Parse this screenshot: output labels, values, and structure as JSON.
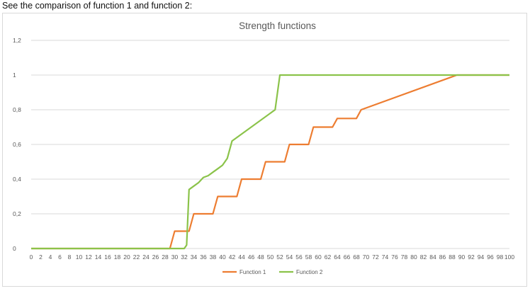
{
  "intro_text": "See the comparison of function 1 and function 2:",
  "chart_data": {
    "type": "line",
    "title": "Strength functions",
    "xlabel": "",
    "ylabel": "",
    "x": [
      0,
      2,
      4,
      6,
      8,
      10,
      12,
      14,
      16,
      18,
      20,
      22,
      24,
      26,
      28,
      30,
      32,
      34,
      36,
      38,
      40,
      42,
      44,
      46,
      48,
      50,
      52,
      54,
      56,
      58,
      60,
      62,
      64,
      66,
      68,
      70,
      72,
      74,
      76,
      78,
      80,
      82,
      84,
      86,
      88,
      90,
      92,
      94,
      96,
      98,
      100
    ],
    "x_tick_labels": [
      "0",
      "2",
      "4",
      "6",
      "8",
      "10",
      "12",
      "14",
      "16",
      "18",
      "20",
      "22",
      "24",
      "26",
      "28",
      "30",
      "32",
      "34",
      "36",
      "38",
      "40",
      "42",
      "44",
      "46",
      "48",
      "50",
      "52",
      "54",
      "56",
      "58",
      "60",
      "62",
      "64",
      "66",
      "68",
      "70",
      "72",
      "74",
      "76",
      "78",
      "80",
      "82",
      "84",
      "86",
      "88",
      "90",
      "92",
      "94",
      "96",
      "98",
      "100"
    ],
    "xlim": [
      0,
      100
    ],
    "ylim": [
      0,
      1.2
    ],
    "y_ticks": [
      0,
      0.2,
      0.4,
      0.6,
      0.8,
      1,
      1.2
    ],
    "y_tick_labels": [
      "0",
      "0,2",
      "0,4",
      "0,6",
      "0,8",
      "1",
      "1,2"
    ],
    "grid": "horizontal",
    "legend_position": "bottom",
    "series": [
      {
        "name": "Function 1",
        "color": "#ED7D31",
        "points": [
          [
            0,
            0
          ],
          [
            29,
            0
          ],
          [
            30,
            0.1
          ],
          [
            33,
            0.1
          ],
          [
            34,
            0.2
          ],
          [
            38,
            0.2
          ],
          [
            39,
            0.3
          ],
          [
            43,
            0.3
          ],
          [
            44,
            0.4
          ],
          [
            48,
            0.4
          ],
          [
            49,
            0.5
          ],
          [
            53,
            0.5
          ],
          [
            54,
            0.6
          ],
          [
            58,
            0.6
          ],
          [
            59,
            0.7
          ],
          [
            63,
            0.7
          ],
          [
            64,
            0.75
          ],
          [
            68,
            0.75
          ],
          [
            69,
            0.8
          ],
          [
            89,
            1
          ],
          [
            100,
            1
          ]
        ]
      },
      {
        "name": "Function 2",
        "color": "#8BC34A",
        "points": [
          [
            0,
            0
          ],
          [
            32,
            0
          ],
          [
            32.5,
            0.02
          ],
          [
            33,
            0.34
          ],
          [
            34,
            0.36
          ],
          [
            35,
            0.38
          ],
          [
            36,
            0.41
          ],
          [
            37,
            0.42
          ],
          [
            38,
            0.44
          ],
          [
            39,
            0.46
          ],
          [
            40,
            0.48
          ],
          [
            41,
            0.52
          ],
          [
            42,
            0.62
          ],
          [
            51,
            0.8
          ],
          [
            52,
            1
          ],
          [
            100,
            1
          ]
        ]
      }
    ]
  }
}
